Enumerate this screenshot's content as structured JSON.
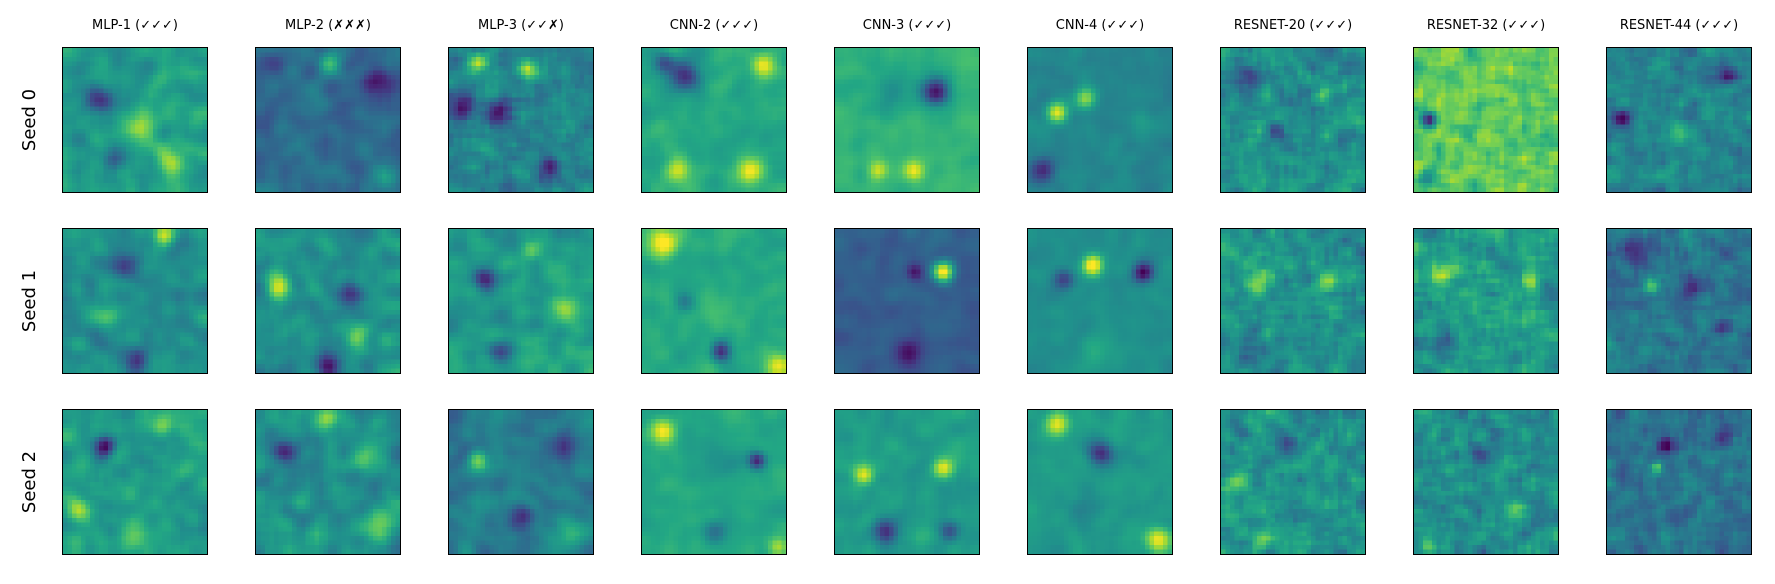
{
  "chart_data": {
    "type": "heatmap",
    "colormap": "viridis",
    "grid": false,
    "columns": [
      "MLP-1 (✓✓✓)",
      "MLP-2 (✗✗✗)",
      "MLP-3 (✓✓✗)",
      "CNN-2 (✓✓✓)",
      "CNN-3 (✓✓✓)",
      "CNN-4 (✓✓✓)",
      "RESNET-20 (✓✓✓)",
      "RESNET-32 (✓✓✓)",
      "RESNET-44 (✓✓✓)"
    ],
    "rows": [
      "Seed 0",
      "Seed 1",
      "Seed 2"
    ],
    "panel_resolution": [
      32,
      32
    ],
    "panels": [
      [
        {
          "base": 0.55,
          "blobs": [
            [
              0.25,
              0.35,
              0.07,
              -0.45
            ],
            [
              0.55,
              0.55,
              0.08,
              0.3
            ],
            [
              0.75,
              0.8,
              0.07,
              0.3
            ],
            [
              0.35,
              0.75,
              0.06,
              -0.2
            ]
          ],
          "noise": 0.12,
          "smooth": 2
        },
        {
          "base": 0.35,
          "blobs": [
            [
              0.85,
              0.25,
              0.08,
              -0.3
            ],
            [
              0.1,
              0.1,
              0.06,
              -0.2
            ],
            [
              0.5,
              0.1,
              0.06,
              0.25
            ],
            [
              0.9,
              0.9,
              0.06,
              0.2
            ]
          ],
          "noise": 0.1,
          "smooth": 2
        },
        {
          "base": 0.45,
          "blobs": [
            [
              0.2,
              0.1,
              0.05,
              0.45
            ],
            [
              0.55,
              0.15,
              0.05,
              0.4
            ],
            [
              0.1,
              0.4,
              0.06,
              -0.4
            ],
            [
              0.35,
              0.45,
              0.06,
              -0.35
            ],
            [
              0.7,
              0.85,
              0.06,
              -0.35
            ]
          ],
          "noise": 0.14,
          "smooth": 1
        },
        {
          "base": 0.6,
          "blobs": [
            [
              0.3,
              0.2,
              0.08,
              -0.45
            ],
            [
              0.85,
              0.12,
              0.06,
              0.4
            ],
            [
              0.25,
              0.85,
              0.06,
              0.35
            ],
            [
              0.75,
              0.85,
              0.06,
              0.4
            ],
            [
              0.15,
              0.1,
              0.05,
              -0.3
            ]
          ],
          "noise": 0.07,
          "smooth": 2
        },
        {
          "base": 0.65,
          "blobs": [
            [
              0.7,
              0.3,
              0.07,
              -0.6
            ],
            [
              0.4,
              0.3,
              0.1,
              -0.15
            ],
            [
              0.55,
              0.85,
              0.05,
              0.35
            ],
            [
              0.3,
              0.85,
              0.05,
              0.3
            ]
          ],
          "noise": 0.05,
          "smooth": 2
        },
        {
          "base": 0.45,
          "blobs": [
            [
              0.2,
              0.45,
              0.05,
              0.5
            ],
            [
              0.4,
              0.35,
              0.05,
              0.35
            ],
            [
              0.1,
              0.85,
              0.06,
              -0.35
            ],
            [
              0.8,
              0.5,
              0.06,
              0.05
            ]
          ],
          "noise": 0.06,
          "smooth": 2
        },
        {
          "base": 0.5,
          "blobs": [
            [
              0.2,
              0.2,
              0.06,
              -0.3
            ],
            [
              0.7,
              0.3,
              0.05,
              0.2
            ],
            [
              0.4,
              0.6,
              0.05,
              -0.2
            ]
          ],
          "noise": 0.18,
          "smooth": 1
        },
        {
          "base": 0.75,
          "blobs": [
            [
              0.1,
              0.5,
              0.04,
              -0.6
            ],
            [
              0.1,
              0.9,
              0.05,
              -0.3
            ],
            [
              0.6,
              0.3,
              0.06,
              0.15
            ]
          ],
          "noise": 0.18,
          "smooth": 1
        },
        {
          "base": 0.45,
          "blobs": [
            [
              0.85,
              0.2,
              0.04,
              -0.4
            ],
            [
              0.1,
              0.5,
              0.04,
              -0.35
            ],
            [
              0.5,
              0.6,
              0.05,
              0.2
            ]
          ],
          "noise": 0.16,
          "smooth": 1
        }
      ],
      [
        {
          "base": 0.5,
          "blobs": [
            [
              0.7,
              0.05,
              0.05,
              0.35
            ],
            [
              0.4,
              0.25,
              0.07,
              -0.3
            ],
            [
              0.5,
              0.9,
              0.06,
              -0.35
            ],
            [
              0.3,
              0.6,
              0.06,
              0.15
            ]
          ],
          "noise": 0.12,
          "smooth": 2
        },
        {
          "base": 0.5,
          "blobs": [
            [
              0.15,
              0.4,
              0.06,
              0.45
            ],
            [
              0.65,
              0.45,
              0.06,
              -0.35
            ],
            [
              0.7,
              0.75,
              0.06,
              0.3
            ],
            [
              0.5,
              0.95,
              0.06,
              -0.4
            ]
          ],
          "noise": 0.13,
          "smooth": 2
        },
        {
          "base": 0.55,
          "blobs": [
            [
              0.25,
              0.35,
              0.06,
              -0.45
            ],
            [
              0.8,
              0.55,
              0.07,
              0.3
            ],
            [
              0.35,
              0.85,
              0.06,
              -0.35
            ],
            [
              0.55,
              0.15,
              0.05,
              0.2
            ]
          ],
          "noise": 0.12,
          "smooth": 2
        },
        {
          "base": 0.6,
          "blobs": [
            [
              0.15,
              0.1,
              0.07,
              0.45
            ],
            [
              0.5,
              0.6,
              0.1,
              0.1
            ],
            [
              0.55,
              0.85,
              0.05,
              -0.45
            ],
            [
              0.95,
              0.95,
              0.06,
              0.35
            ],
            [
              0.3,
              0.5,
              0.05,
              -0.2
            ]
          ],
          "noise": 0.06,
          "smooth": 2
        },
        {
          "base": 0.3,
          "blobs": [
            [
              0.55,
              0.3,
              0.04,
              -0.25
            ],
            [
              0.75,
              0.3,
              0.05,
              0.7
            ],
            [
              0.5,
              0.85,
              0.07,
              -0.25
            ]
          ],
          "noise": 0.06,
          "smooth": 2
        },
        {
          "base": 0.5,
          "blobs": [
            [
              0.45,
              0.25,
              0.05,
              0.6
            ],
            [
              0.8,
              0.3,
              0.05,
              -0.5
            ],
            [
              0.25,
              0.35,
              0.05,
              -0.3
            ],
            [
              0.5,
              0.85,
              0.1,
              0.1
            ]
          ],
          "noise": 0.05,
          "smooth": 2
        },
        {
          "base": 0.5,
          "blobs": [
            [
              0.25,
              0.35,
              0.07,
              0.3
            ],
            [
              0.75,
              0.35,
              0.05,
              0.4
            ],
            [
              0.2,
              0.85,
              0.06,
              -0.2
            ]
          ],
          "noise": 0.17,
          "smooth": 1
        },
        {
          "base": 0.55,
          "blobs": [
            [
              0.2,
              0.3,
              0.06,
              0.3
            ],
            [
              0.8,
              0.35,
              0.05,
              0.35
            ],
            [
              0.2,
              0.8,
              0.05,
              -0.3
            ]
          ],
          "noise": 0.18,
          "smooth": 1
        },
        {
          "base": 0.4,
          "blobs": [
            [
              0.2,
              0.15,
              0.06,
              -0.25
            ],
            [
              0.3,
              0.4,
              0.04,
              0.35
            ],
            [
              0.6,
              0.4,
              0.05,
              -0.25
            ],
            [
              0.8,
              0.7,
              0.04,
              -0.2
            ]
          ],
          "noise": 0.15,
          "smooth": 1
        }
      ],
      [
        {
          "base": 0.55,
          "blobs": [
            [
              0.3,
              0.25,
              0.05,
              -0.45
            ],
            [
              0.7,
              0.1,
              0.05,
              0.25
            ],
            [
              0.1,
              0.7,
              0.06,
              0.3
            ],
            [
              0.5,
              0.9,
              0.07,
              0.2
            ]
          ],
          "noise": 0.12,
          "smooth": 2
        },
        {
          "base": 0.5,
          "blobs": [
            [
              0.2,
              0.3,
              0.06,
              -0.4
            ],
            [
              0.5,
              0.05,
              0.05,
              0.4
            ],
            [
              0.75,
              0.35,
              0.06,
              0.3
            ],
            [
              0.85,
              0.8,
              0.07,
              0.3
            ]
          ],
          "noise": 0.14,
          "smooth": 2
        },
        {
          "base": 0.42,
          "blobs": [
            [
              0.2,
              0.35,
              0.05,
              0.4
            ],
            [
              0.8,
              0.25,
              0.06,
              -0.35
            ],
            [
              0.5,
              0.75,
              0.06,
              -0.3
            ],
            [
              0.85,
              0.85,
              0.06,
              0.25
            ]
          ],
          "noise": 0.12,
          "smooth": 2
        },
        {
          "base": 0.6,
          "blobs": [
            [
              0.15,
              0.15,
              0.06,
              0.4
            ],
            [
              0.55,
              0.35,
              0.12,
              -0.1
            ],
            [
              0.8,
              0.35,
              0.04,
              -0.45
            ],
            [
              0.5,
              0.85,
              0.06,
              -0.25
            ],
            [
              0.95,
              0.95,
              0.05,
              0.3
            ]
          ],
          "noise": 0.05,
          "smooth": 2
        },
        {
          "base": 0.55,
          "blobs": [
            [
              0.2,
              0.45,
              0.05,
              0.4
            ],
            [
              0.75,
              0.4,
              0.05,
              0.45
            ],
            [
              0.35,
              0.85,
              0.06,
              -0.45
            ],
            [
              0.8,
              0.85,
              0.05,
              -0.3
            ]
          ],
          "noise": 0.07,
          "smooth": 2
        },
        {
          "base": 0.55,
          "blobs": [
            [
              0.5,
              0.3,
              0.06,
              -0.45
            ],
            [
              0.2,
              0.1,
              0.06,
              0.4
            ],
            [
              0.9,
              0.9,
              0.06,
              0.45
            ],
            [
              0.4,
              0.7,
              0.08,
              -0.1
            ]
          ],
          "noise": 0.06,
          "smooth": 2
        },
        {
          "base": 0.5,
          "blobs": [
            [
              0.1,
              0.5,
              0.05,
              0.35
            ],
            [
              0.45,
              0.25,
              0.05,
              -0.25
            ],
            [
              0.3,
              0.9,
              0.05,
              0.3
            ]
          ],
          "noise": 0.18,
          "smooth": 1
        },
        {
          "base": 0.5,
          "blobs": [
            [
              0.45,
              0.3,
              0.05,
              -0.35
            ],
            [
              0.1,
              0.95,
              0.04,
              0.4
            ],
            [
              0.7,
              0.7,
              0.05,
              0.2
            ]
          ],
          "noise": 0.18,
          "smooth": 1
        },
        {
          "base": 0.38,
          "blobs": [
            [
              0.4,
              0.25,
              0.04,
              -0.4
            ],
            [
              0.35,
              0.4,
              0.03,
              0.45
            ],
            [
              0.8,
              0.2,
              0.05,
              -0.2
            ]
          ],
          "noise": 0.16,
          "smooth": 1
        }
      ]
    ]
  }
}
